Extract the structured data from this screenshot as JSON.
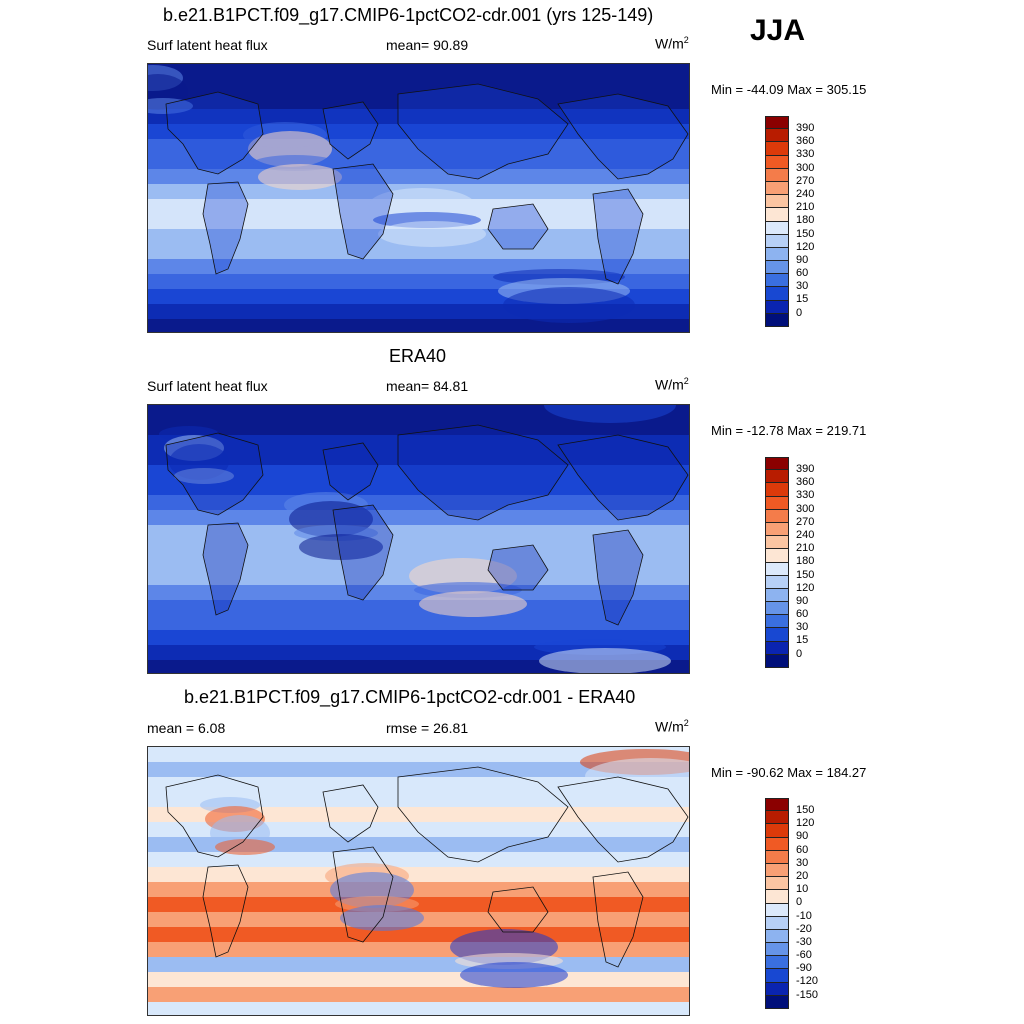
{
  "season": "JJA",
  "units_base": "W/m",
  "units_exp": "2",
  "panels": [
    {
      "title": "b.e21.B1PCT.f09_g17.CMIP6-1pctCO2-cdr.001 (yrs 125-149)",
      "left_label": "Surf latent heat flux",
      "center_label": "mean=  90.89",
      "minmax": "Min = -44.09 Max = 305.15",
      "levels": [
        "390",
        "360",
        "330",
        "300",
        "270",
        "240",
        "210",
        "180",
        "150",
        "120",
        "90",
        "60",
        "30",
        "15",
        "0"
      ],
      "colors": [
        "#8b0000",
        "#b81c00",
        "#dc3a0a",
        "#f05a24",
        "#f47c4a",
        "#f8a075",
        "#fbc5a2",
        "#fde6d4",
        "#dce9fb",
        "#b7d0f6",
        "#8db3f0",
        "#6694e8",
        "#3a6fe0",
        "#1848d2",
        "#0a24b0",
        "#000f7a"
      ],
      "map_palette": [
        "#0a1a8c",
        "#0d2cb4",
        "#1a46d4",
        "#3a66e0",
        "#5d86e8",
        "#9bbcf2",
        "#d4e4fa",
        "#fbd9c4"
      ]
    },
    {
      "title": "ERA40",
      "left_label": "Surf latent heat flux",
      "center_label": "mean=  84.81",
      "minmax": "Min = -12.78 Max = 219.71",
      "levels": [
        "390",
        "360",
        "330",
        "300",
        "270",
        "240",
        "210",
        "180",
        "150",
        "120",
        "90",
        "60",
        "30",
        "15",
        "0"
      ],
      "colors": [
        "#8b0000",
        "#b81c00",
        "#dc3a0a",
        "#f05a24",
        "#f47c4a",
        "#f8a075",
        "#fbc5a2",
        "#fde6d4",
        "#dce9fb",
        "#b7d0f6",
        "#8db3f0",
        "#6694e8",
        "#3a6fe0",
        "#1848d2",
        "#0a24b0",
        "#000f7a"
      ],
      "map_palette": [
        "#0a1a8c",
        "#0d2cb4",
        "#1a46d4",
        "#3a66e0",
        "#5d86e8",
        "#9bbcf2",
        "#d4e4fa",
        "#fbd9c4"
      ]
    },
    {
      "title": "b.e21.B1PCT.f09_g17.CMIP6-1pctCO2-cdr.001 - ERA40",
      "left_label": "mean =   6.08",
      "center_label": "rmse =  26.81",
      "minmax": "Min = -90.62 Max = 184.27",
      "levels": [
        "150",
        "120",
        "90",
        "60",
        "30",
        "20",
        "10",
        "0",
        "-10",
        "-20",
        "-30",
        "-60",
        "-90",
        "-120",
        "-150"
      ],
      "colors": [
        "#8b0000",
        "#b81c00",
        "#dc3a0a",
        "#f05a24",
        "#f47c4a",
        "#f8a075",
        "#fbc5a2",
        "#fde6d4",
        "#dce9fb",
        "#b7d0f6",
        "#8db3f0",
        "#6694e8",
        "#3a6fe0",
        "#1848d2",
        "#0a24b0",
        "#000f7a"
      ],
      "map_palette": [
        "#1a3ad0",
        "#4d7ae6",
        "#9bbcf2",
        "#d8e8fb",
        "#fde6d4",
        "#f8a075",
        "#f05a24",
        "#dc3a0a"
      ]
    }
  ]
}
